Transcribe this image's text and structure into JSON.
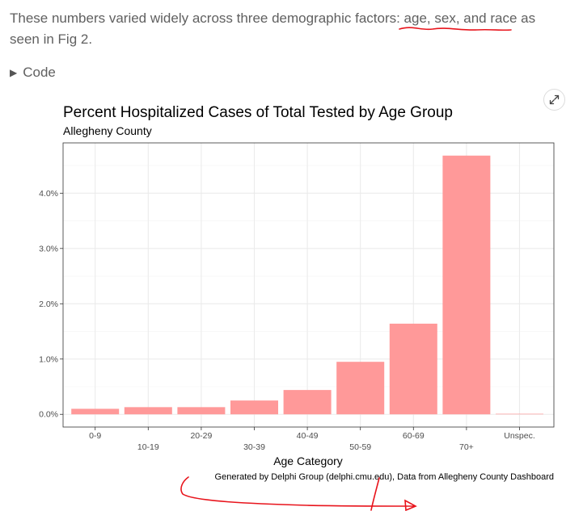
{
  "intro": {
    "text": "These numbers varied widely across three demographic factors: age, sex, and race as seen in Fig 2."
  },
  "code_toggle": {
    "label": "Code",
    "icon": "triangle-right-icon"
  },
  "expand_button": {
    "icon": "expand-arrows-icon"
  },
  "colors": {
    "bar": "#ff9999",
    "grid_major": "#ebebeb",
    "grid_minor": "#f5f5f5",
    "panel_border": "#333333",
    "annotation_red": "#e8141c",
    "body_text": "#606060"
  },
  "chart_data": {
    "type": "bar",
    "title": "Percent Hospitalized Cases of Total Tested by Age Group",
    "subtitle": "Allegheny County",
    "xlabel": "Age Category",
    "ylabel": "",
    "categories": [
      "0-9",
      "10-19",
      "20-29",
      "30-39",
      "40-49",
      "50-59",
      "60-69",
      "70+",
      "Unspec."
    ],
    "values": [
      0.1,
      0.13,
      0.13,
      0.25,
      0.44,
      0.95,
      1.64,
      4.68,
      0.01
    ],
    "y_ticks": [
      0,
      1,
      2,
      3,
      4
    ],
    "y_tick_labels": [
      "0.0%",
      "1.0%",
      "2.0%",
      "3.0%",
      "4.0%"
    ],
    "ylim": [
      -0.23,
      4.91
    ],
    "x_tick_dodge": true,
    "grid": true,
    "caption": "Generated by Delphi Group (delphi.cmu.edu), Data from Allegheny County Dashboard"
  }
}
